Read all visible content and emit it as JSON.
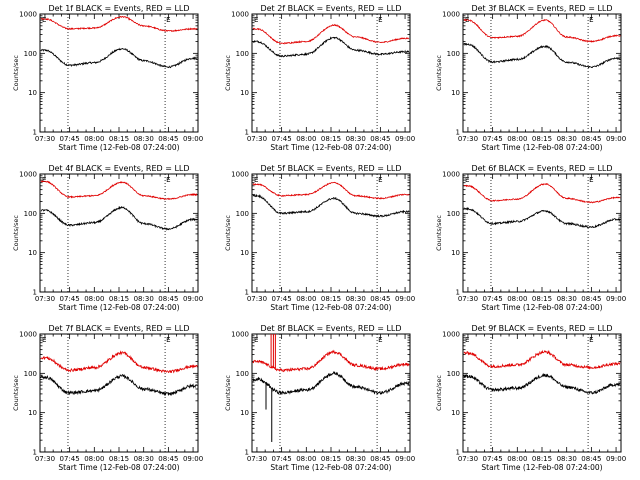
{
  "chart_data": {
    "type": "line",
    "figure_layout": {
      "rows": 3,
      "cols": 3
    },
    "x_tick_labels": [
      "07:30",
      "07:45",
      "08:00",
      "08:15",
      "08:30",
      "08:45",
      "09:00"
    ],
    "x_tick_minutes": [
      0,
      15,
      30,
      45,
      60,
      75,
      90
    ],
    "xlim_minutes": [
      -3,
      93
    ],
    "xlabel": "Start Time (12-Feb-08 07:24:00)",
    "ylabel": "Counts/sec",
    "yscale": "log",
    "ylim": [
      1,
      1000
    ],
    "y_tick_labels": [
      "1",
      "10",
      "100",
      "1000"
    ],
    "y_tick_values": [
      1,
      10,
      100,
      1000
    ],
    "marker_label": "E",
    "dotted_lines_minutes": [
      14,
      73
    ],
    "series_colors": {
      "events": "#000000",
      "lld": "#e00000"
    },
    "key_times_minutes": [
      0,
      15,
      30,
      47,
      60,
      75,
      90
    ],
    "panels": [
      {
        "title": "Det 1f BLACK = Events, RED = LLD",
        "events": [
          120,
          50,
          58,
          130,
          65,
          45,
          75
        ],
        "lld": [
          750,
          420,
          440,
          850,
          500,
          370,
          420
        ]
      },
      {
        "title": "Det 2f BLACK = Events, RED = LLD",
        "events": [
          200,
          85,
          95,
          250,
          120,
          95,
          110
        ],
        "lld": [
          420,
          180,
          200,
          520,
          260,
          190,
          240
        ]
      },
      {
        "title": "Det 3f BLACK = Events, RED = LLD",
        "events": [
          170,
          60,
          70,
          150,
          60,
          45,
          75
        ],
        "lld": [
          700,
          250,
          270,
          700,
          260,
          200,
          280
        ]
      },
      {
        "title": "Det 4f BLACK = Events, RED = LLD",
        "events": [
          120,
          50,
          58,
          140,
          55,
          40,
          70
        ],
        "lld": [
          650,
          260,
          280,
          620,
          280,
          230,
          300
        ]
      },
      {
        "title": "Det 5f BLACK = Events, RED = LLD",
        "events": [
          280,
          100,
          110,
          240,
          100,
          85,
          110
        ],
        "lld": [
          550,
          280,
          300,
          600,
          280,
          240,
          300
        ]
      },
      {
        "title": "Det 6f BLACK = Events, RED = LLD",
        "events": [
          130,
          55,
          62,
          115,
          55,
          45,
          70
        ],
        "lld": [
          500,
          210,
          230,
          560,
          240,
          190,
          250
        ]
      },
      {
        "title": "Det 7f BLACK = Events, RED = LLD",
        "events": [
          80,
          32,
          36,
          85,
          40,
          30,
          48
        ],
        "lld": [
          250,
          120,
          140,
          330,
          140,
          110,
          150
        ]
      },
      {
        "title": "Det 8f BLACK = Events, RED = LLD",
        "events": [
          70,
          32,
          38,
          100,
          45,
          32,
          55
        ],
        "lld": [
          200,
          120,
          130,
          350,
          160,
          130,
          170
        ]
      },
      {
        "title": "Det 9f BLACK = Events, RED = LLD",
        "events": [
          85,
          38,
          42,
          90,
          45,
          32,
          52
        ],
        "lld": [
          330,
          150,
          165,
          350,
          165,
          140,
          175
        ]
      }
    ]
  }
}
